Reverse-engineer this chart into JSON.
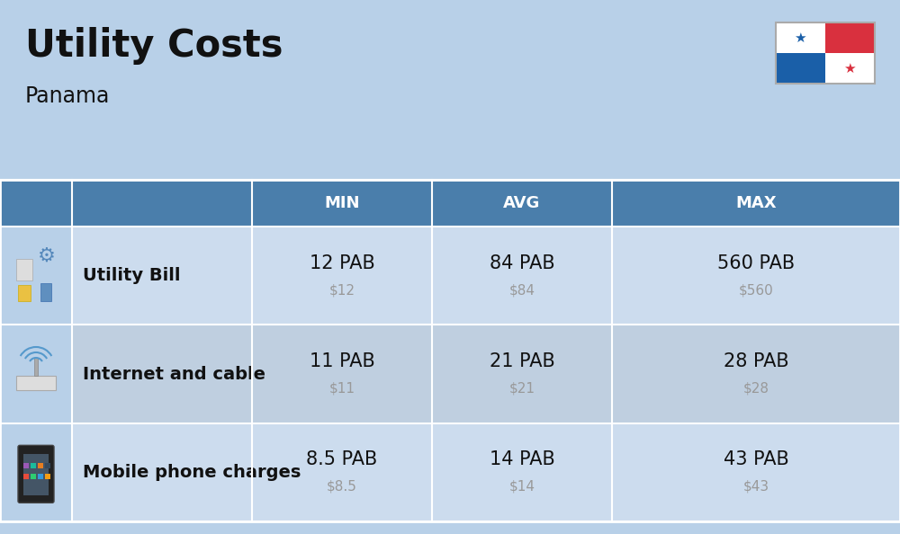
{
  "title": "Utility Costs",
  "subtitle": "Panama",
  "background_color": "#b8d0e8",
  "header_bg_color": "#4a7eab",
  "header_text_color": "#ffffff",
  "row_bg_color_1": "#ccdcee",
  "row_bg_color_2": "#bfcfe0",
  "icon_col_bg": "#b8d0e8",
  "col_headers": [
    "MIN",
    "AVG",
    "MAX"
  ],
  "rows": [
    {
      "label": "Utility Bill",
      "min_pab": "12 PAB",
      "min_usd": "$12",
      "avg_pab": "84 PAB",
      "avg_usd": "$84",
      "max_pab": "560 PAB",
      "max_usd": "$560",
      "icon": "utility"
    },
    {
      "label": "Internet and cable",
      "min_pab": "11 PAB",
      "min_usd": "$11",
      "avg_pab": "21 PAB",
      "avg_usd": "$21",
      "max_pab": "28 PAB",
      "max_usd": "$28",
      "icon": "internet"
    },
    {
      "label": "Mobile phone charges",
      "min_pab": "8.5 PAB",
      "min_usd": "$8.5",
      "avg_pab": "14 PAB",
      "avg_usd": "$14",
      "max_pab": "43 PAB",
      "max_usd": "$43",
      "icon": "mobile"
    }
  ],
  "title_fontsize": 30,
  "subtitle_fontsize": 17,
  "header_fontsize": 13,
  "cell_pab_fontsize": 15,
  "cell_usd_fontsize": 11,
  "label_fontsize": 14,
  "usd_color": "#999999",
  "text_color": "#111111",
  "flag_blue": "#1a5fa8",
  "flag_red": "#d9303e"
}
